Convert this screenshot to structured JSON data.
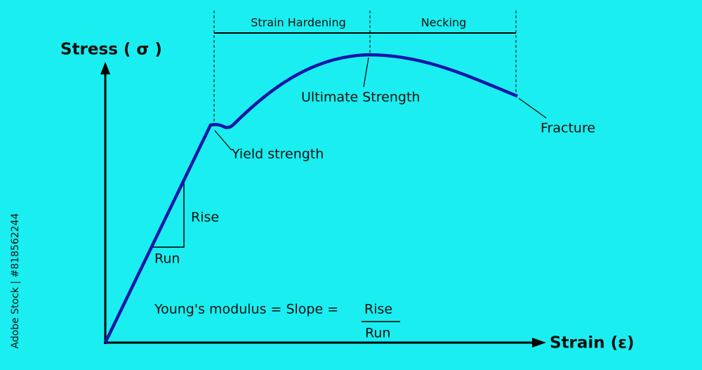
{
  "axes": {
    "y_label": "Stress ( σ )",
    "x_label": "Strain (ε)"
  },
  "regions": [
    {
      "label": "Strain Hardening"
    },
    {
      "label": "Necking"
    }
  ],
  "points": [
    {
      "label": "Yield strength"
    },
    {
      "label": "Ultimate Strength"
    },
    {
      "label": "Fracture"
    }
  ],
  "slope_triangle": {
    "rise": "Rise",
    "run": "Run"
  },
  "formula": {
    "text": "Young's modulus = Slope =",
    "numerator": "Rise",
    "denominator": "Run"
  },
  "credit": "Adobe Stock | #818562244"
}
